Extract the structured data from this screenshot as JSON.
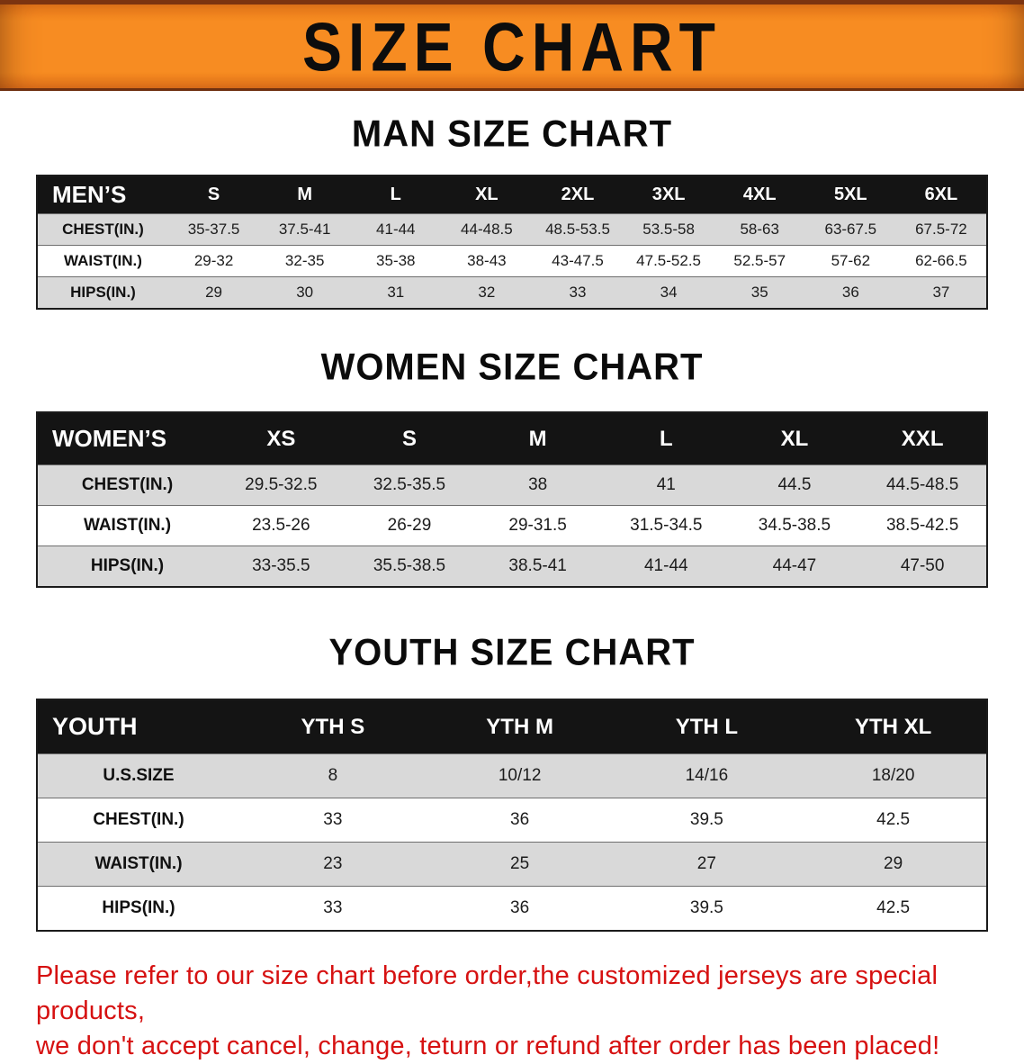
{
  "banner": {
    "title": "SIZE CHART",
    "bg_color": "#f78c22",
    "text_color": "#0d0d0d"
  },
  "colors": {
    "table_header_bg": "#141414",
    "table_header_text": "#ffffff",
    "row_stripe": "#d9d9d9",
    "disclaimer_text": "#d61111"
  },
  "sections": [
    {
      "id": "men",
      "heading": "MAN SIZE CHART",
      "table": {
        "header": [
          "MEN’S",
          "S",
          "M",
          "L",
          "XL",
          "2XL",
          "3XL",
          "4XL",
          "5XL",
          "6XL"
        ],
        "rows": [
          [
            "CHEST(IN.)",
            "35-37.5",
            "37.5-41",
            "41-44",
            "44-48.5",
            "48.5-53.5",
            "53.5-58",
            "58-63",
            "63-67.5",
            "67.5-72"
          ],
          [
            "WAIST(IN.)",
            "29-32",
            "32-35",
            "35-38",
            "38-43",
            "43-47.5",
            "47.5-52.5",
            "52.5-57",
            "57-62",
            "62-66.5"
          ],
          [
            "HIPS(IN.)",
            "29",
            "30",
            "31",
            "32",
            "33",
            "34",
            "35",
            "36",
            "37"
          ]
        ]
      }
    },
    {
      "id": "women",
      "heading": "WOMEN SIZE CHART",
      "table": {
        "header": [
          "WOMEN’S",
          "XS",
          "S",
          "M",
          "L",
          "XL",
          "XXL"
        ],
        "rows": [
          [
            "CHEST(IN.)",
            "29.5-32.5",
            "32.5-35.5",
            "38",
            "41",
            "44.5",
            "44.5-48.5"
          ],
          [
            "WAIST(IN.)",
            "23.5-26",
            "26-29",
            "29-31.5",
            "31.5-34.5",
            "34.5-38.5",
            "38.5-42.5"
          ],
          [
            "HIPS(IN.)",
            "33-35.5",
            "35.5-38.5",
            "38.5-41",
            "41-44",
            "44-47",
            "47-50"
          ]
        ]
      }
    },
    {
      "id": "youth",
      "heading": "YOUTH SIZE CHART",
      "table": {
        "header": [
          "YOUTH",
          "YTH S",
          "YTH M",
          "YTH L",
          "YTH XL"
        ],
        "rows": [
          [
            "U.S.SIZE",
            "8",
            "10/12",
            "14/16",
            "18/20"
          ],
          [
            "CHEST(IN.)",
            "33",
            "36",
            "39.5",
            "42.5"
          ],
          [
            "WAIST(IN.)",
            "23",
            "25",
            "27",
            "29"
          ],
          [
            "HIPS(IN.)",
            "33",
            "36",
            "39.5",
            "42.5"
          ]
        ]
      }
    }
  ],
  "disclaimer": {
    "line1": "Please refer to our size chart before order,the customized jerseys are special products,",
    "line2": "we don't accept cancel, change, teturn or refund after order has been placed!"
  }
}
